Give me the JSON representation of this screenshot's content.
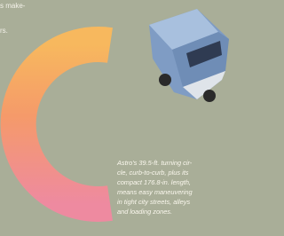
{
  "header_fragment": [
    "s make-",
    "rs."
  ],
  "caption": {
    "lines": [
      "Astro's 39.5-ft. turning cir-",
      "cle, curb-to-curb, plus its",
      "compact 176.8-in. length,",
      "means easy maneuvering",
      "in tight city streets, alleys",
      "and loading zones."
    ]
  }
}
